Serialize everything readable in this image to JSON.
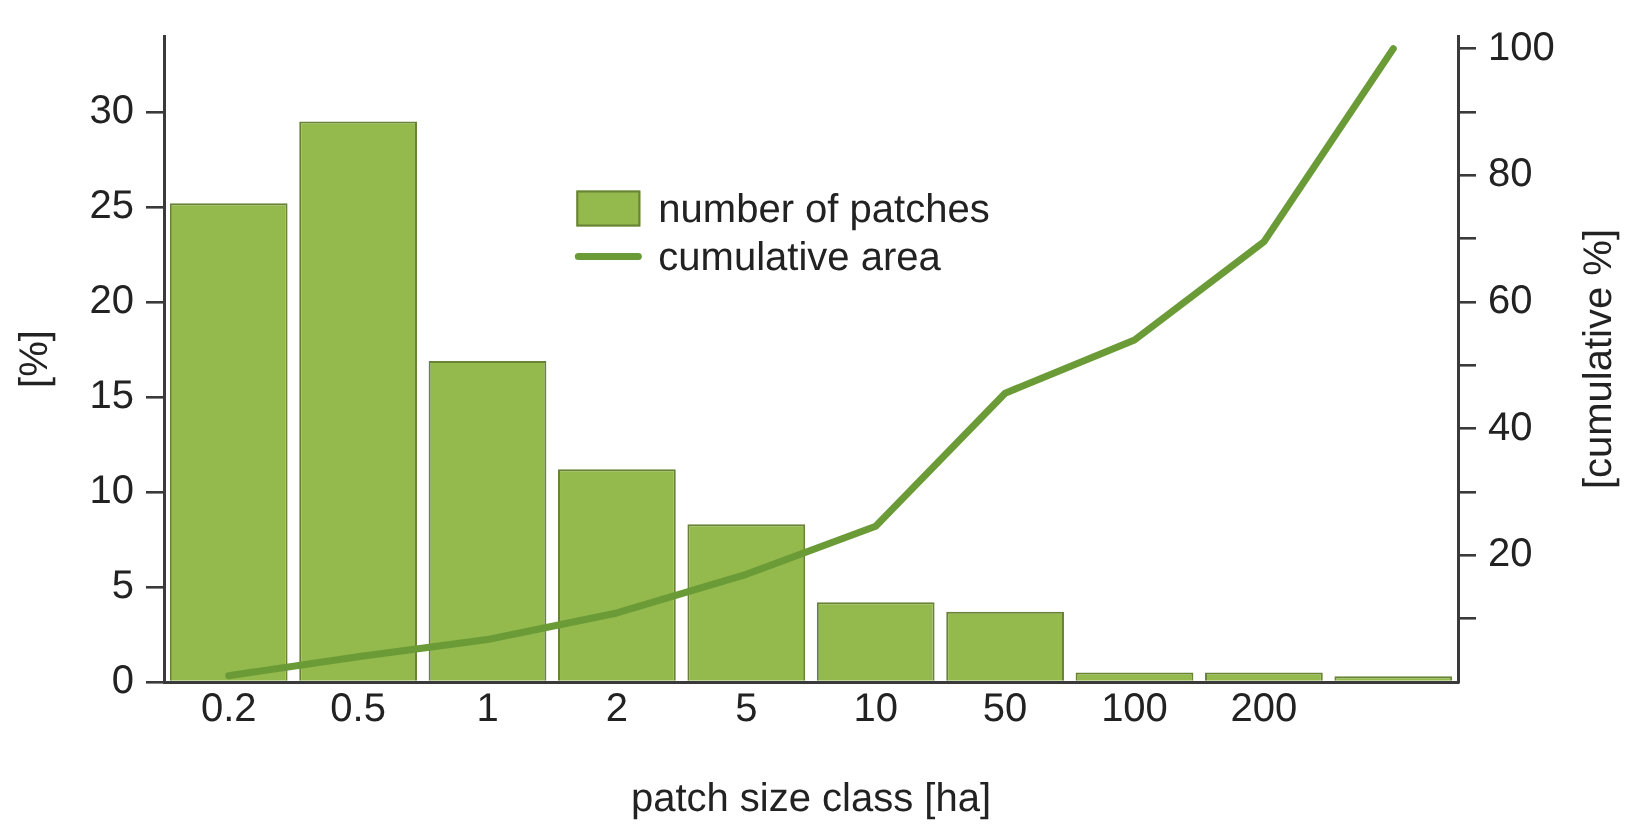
{
  "chart_data": {
    "type": "bar",
    "xlabel": "patch size class [ha]",
    "ylabel": "[%]",
    "y2label": "[cumulative %]",
    "categories": [
      "0.2",
      "0.5",
      "1",
      "2",
      "5",
      "10",
      "50",
      "100",
      "200",
      null
    ],
    "series": [
      {
        "name": "number of patches",
        "color": "#94b94d",
        "values": [
          25.2,
          29.5,
          16.9,
          11.2,
          8.3,
          4.2,
          3.7,
          0.5,
          0.5,
          0.3
        ]
      },
      {
        "name": "cumulative area",
        "type": "line",
        "axis": "y2",
        "color": "#6b9b37",
        "values": [
          1,
          4,
          6.7,
          10.9,
          17,
          24.6,
          45.6,
          54,
          69.5,
          100
        ]
      }
    ],
    "ylim": [
      0,
      34
    ],
    "yticks": [
      0,
      5,
      10,
      15,
      20,
      25,
      30
    ],
    "y2lim": [
      0,
      102
    ],
    "y2ticks": [
      {
        "value": 10,
        "label": null
      },
      20,
      {
        "value": 30,
        "label": null
      },
      40,
      {
        "value": 50,
        "label": null
      },
      60,
      {
        "value": 70,
        "label": null
      },
      80,
      {
        "value": 90,
        "label": null
      },
      100
    ],
    "legend": "top",
    "marker": "none",
    "grid": false
  }
}
